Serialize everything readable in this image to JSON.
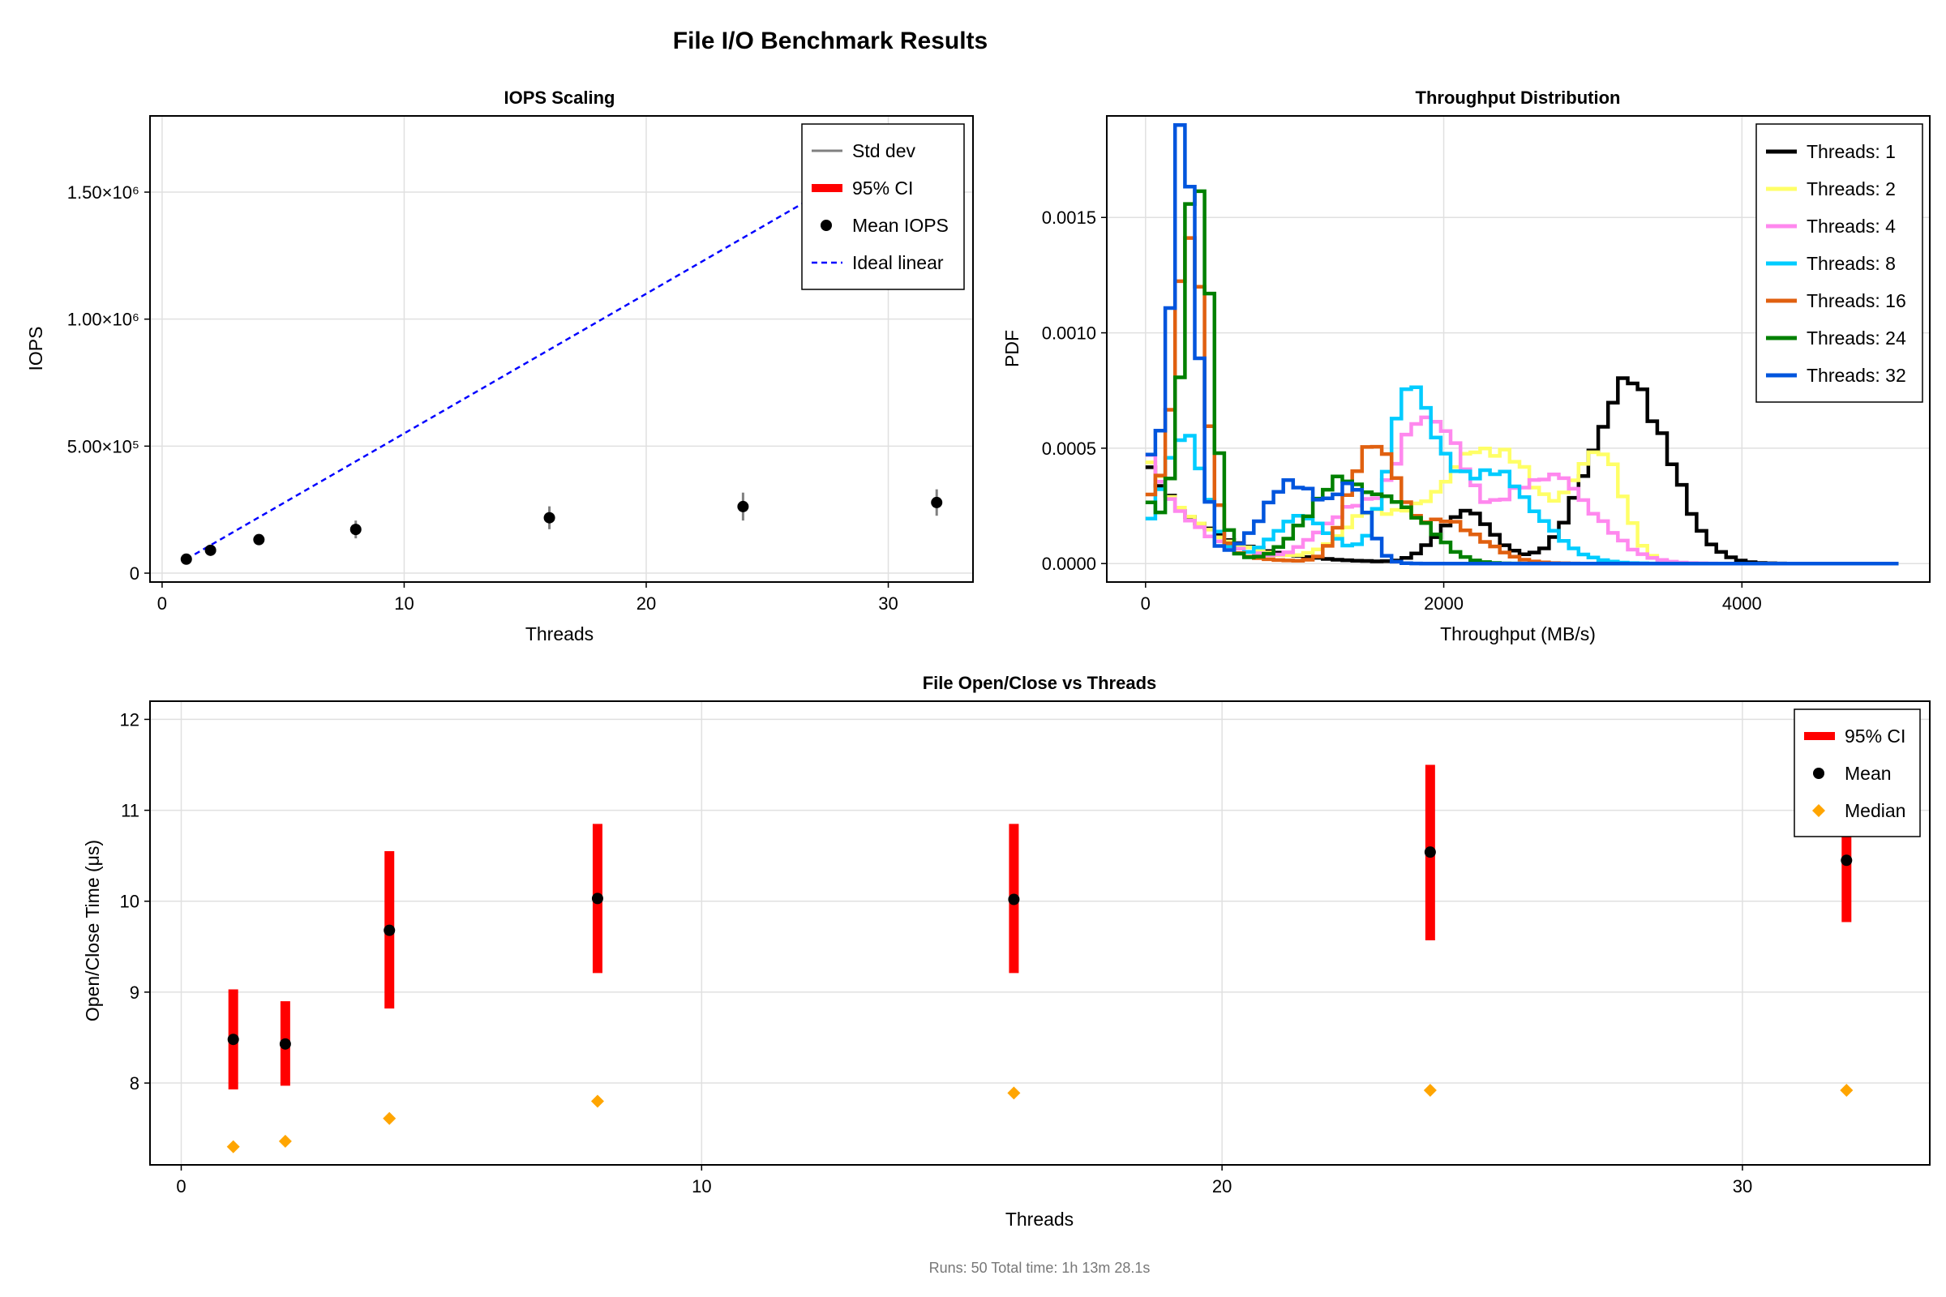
{
  "title": "File I/O Benchmark Results",
  "footer": "Runs: 50  Total time: 1h 13m 28.1s",
  "colors": {
    "std": "#808080",
    "ci": "#ff0000",
    "mean": "#000000",
    "ideal": "#0000ff",
    "median": "#ffa500",
    "t1": "#000000",
    "t2": "#ffff66",
    "t4": "#ff88ee",
    "t8": "#00ccff",
    "t16": "#e06010",
    "t24": "#008000",
    "t32": "#0055dd"
  },
  "chart_data": [
    {
      "type": "scatter",
      "title": "IOPS Scaling",
      "xlabel": "Threads",
      "ylabel": "IOPS",
      "xlim": [
        -0.5,
        33.5
      ],
      "ylim": [
        -35000,
        1800000
      ],
      "xticks": [
        0,
        10,
        20,
        30
      ],
      "xtick_labels": [
        "0",
        "10",
        "20",
        "30"
      ],
      "yticks": [
        0,
        500000,
        1000000,
        1500000
      ],
      "ytick_labels": [
        "0",
        "5.00×10⁵",
        "1.00×10⁶",
        "1.50×10⁶"
      ],
      "grid": true,
      "legend_position": "top-right",
      "legend": [
        "Std dev",
        "95% CI",
        "Mean IOPS",
        "Ideal linear"
      ],
      "threads": [
        1,
        2,
        4,
        8,
        16,
        24,
        32
      ],
      "mean_iops": [
        55000,
        90000,
        132000,
        172000,
        218000,
        262000,
        278000
      ],
      "std_dev": [
        6000,
        10000,
        15000,
        35000,
        45000,
        55000,
        52000
      ],
      "ci95": [
        2000,
        3000,
        4000,
        8000,
        10000,
        12000,
        12000
      ],
      "ideal_linear": {
        "x": [
          1,
          32
        ],
        "y": [
          55000,
          1760000
        ]
      }
    },
    {
      "type": "line",
      "subtype": "step-histogram",
      "title": "Throughput Distribution",
      "xlabel": "Throughput (MB/s)",
      "ylabel": "PDF",
      "xlim": [
        -260,
        5260
      ],
      "ylim": [
        -8e-05,
        0.00194
      ],
      "xticks": [
        0,
        2000,
        4000
      ],
      "xtick_labels": [
        "0",
        "2000",
        "4000"
      ],
      "yticks": [
        0,
        0.0005,
        0.001,
        0.0015
      ],
      "ytick_labels": [
        "0.0000",
        "0.0005",
        "0.0010",
        "0.0015"
      ],
      "grid": true,
      "legend_position": "top-right",
      "bin_width": 66,
      "x_range": [
        0,
        5050
      ],
      "series": [
        {
          "name": "Threads: 1",
          "color_key": "t1",
          "modes": [
            {
              "type": "exp",
              "amp": 0.00043,
              "decay": 400
            },
            {
              "type": "gauss",
              "amp": 0.00022,
              "mu": 2150,
              "sigma": 180
            },
            {
              "type": "gauss",
              "amp": 0.00078,
              "mu": 3250,
              "sigma": 260
            }
          ]
        },
        {
          "name": "Threads: 2",
          "color_key": "t2",
          "modes": [
            {
              "type": "exp",
              "amp": 0.00048,
              "decay": 350
            },
            {
              "type": "gauss",
              "amp": 0.00018,
              "mu": 1500,
              "sigma": 200
            },
            {
              "type": "gauss",
              "amp": 0.0005,
              "mu": 2300,
              "sigma": 350
            },
            {
              "type": "gauss",
              "amp": 0.00045,
              "mu": 3050,
              "sigma": 150
            }
          ]
        },
        {
          "name": "Threads: 4",
          "color_key": "t4",
          "modes": [
            {
              "type": "exp",
              "amp": 0.0005,
              "decay": 300
            },
            {
              "type": "gauss",
              "amp": 0.0002,
              "mu": 1350,
              "sigma": 200
            },
            {
              "type": "gauss",
              "amp": 0.00063,
              "mu": 1900,
              "sigma": 220
            },
            {
              "type": "gauss",
              "amp": 0.00038,
              "mu": 2700,
              "sigma": 300
            }
          ]
        },
        {
          "name": "Threads: 8",
          "color_key": "t8",
          "modes": [
            {
              "type": "gauss",
              "amp": 0.00055,
              "mu": 250,
              "sigma": 150
            },
            {
              "type": "gauss",
              "amp": 0.0002,
              "mu": 1050,
              "sigma": 200
            },
            {
              "type": "gauss",
              "amp": 0.00068,
              "mu": 1780,
              "sigma": 150
            },
            {
              "type": "gauss",
              "amp": 0.0004,
              "mu": 2300,
              "sigma": 300
            }
          ]
        },
        {
          "name": "Threads: 16",
          "color_key": "t16",
          "modes": [
            {
              "type": "gauss",
              "amp": 0.0013,
              "mu": 300,
              "sigma": 100
            },
            {
              "type": "exp",
              "amp": 0.0003,
              "decay": 300
            },
            {
              "type": "gauss",
              "amp": 0.0005,
              "mu": 1520,
              "sigma": 150
            },
            {
              "type": "gauss",
              "amp": 0.00018,
              "mu": 2000,
              "sigma": 250
            }
          ]
        },
        {
          "name": "Threads: 24",
          "color_key": "t24",
          "modes": [
            {
              "type": "gauss",
              "amp": 0.00165,
              "mu": 350,
              "sigma": 90
            },
            {
              "type": "exp",
              "amp": 0.0003,
              "decay": 250
            },
            {
              "type": "gauss",
              "amp": 0.00034,
              "mu": 1300,
              "sigma": 220
            },
            {
              "type": "gauss",
              "amp": 0.0002,
              "mu": 1750,
              "sigma": 200
            }
          ]
        },
        {
          "name": "Threads: 32",
          "color_key": "t32",
          "modes": [
            {
              "type": "gauss",
              "amp": 0.0018,
              "mu": 260,
              "sigma": 85
            },
            {
              "type": "exp",
              "amp": 0.0006,
              "decay": 120
            },
            {
              "type": "gauss",
              "amp": 0.00035,
              "mu": 1000,
              "sigma": 220
            },
            {
              "type": "gauss",
              "amp": 0.00028,
              "mu": 1400,
              "sigma": 100
            }
          ]
        }
      ]
    },
    {
      "type": "scatter",
      "title": "File Open/Close vs Threads",
      "xlabel": "Threads",
      "ylabel": "Open/Close Time (μs)",
      "xlim": [
        -0.6,
        33.6
      ],
      "ylim": [
        7.1,
        12.2
      ],
      "xticks": [
        0,
        10,
        20,
        30
      ],
      "xtick_labels": [
        "0",
        "10",
        "20",
        "30"
      ],
      "yticks": [
        8,
        9,
        10,
        11,
        12
      ],
      "ytick_labels": [
        "8",
        "9",
        "10",
        "11",
        "12"
      ],
      "grid": true,
      "legend_position": "top-right",
      "legend": [
        "95% CI",
        "Mean",
        "Median"
      ],
      "threads": [
        1,
        2,
        4,
        8,
        16,
        24,
        32
      ],
      "mean": [
        8.48,
        8.43,
        9.68,
        10.03,
        10.02,
        10.54,
        10.45
      ],
      "ci_low": [
        7.93,
        7.97,
        8.82,
        9.21,
        9.21,
        9.57,
        9.77
      ],
      "ci_high": [
        9.03,
        8.9,
        10.55,
        10.85,
        10.85,
        11.5,
        11.1
      ],
      "median": [
        7.3,
        7.36,
        7.61,
        7.8,
        7.89,
        7.92,
        7.92
      ]
    }
  ]
}
